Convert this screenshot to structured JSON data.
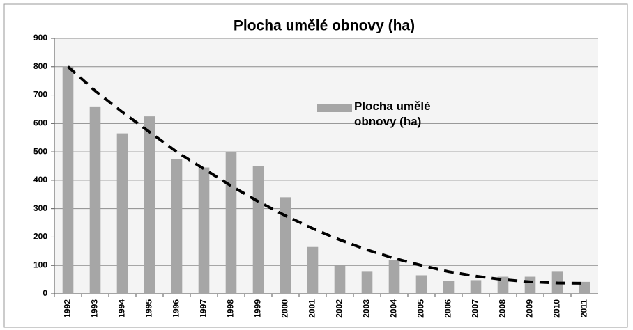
{
  "chart_data": {
    "type": "bar",
    "title": "Plocha umělé obnovy (ha)",
    "categories": [
      "1992",
      "1993",
      "1994",
      "1995",
      "1996",
      "1997",
      "1998",
      "1999",
      "2000",
      "2001",
      "2002",
      "2003",
      "2004",
      "2005",
      "2006",
      "2007",
      "2008",
      "2009",
      "2010",
      "2011"
    ],
    "series": [
      {
        "name": "Plocha umělé obnovy (ha)",
        "color": "#a6a6a6",
        "values": [
          800,
          660,
          565,
          625,
          475,
          445,
          500,
          450,
          340,
          165,
          100,
          80,
          120,
          65,
          45,
          48,
          60,
          60,
          80,
          42
        ]
      }
    ],
    "trendline": {
      "color": "#000000",
      "values": [
        800,
        715,
        640,
        570,
        500,
        440,
        380,
        325,
        275,
        230,
        190,
        155,
        125,
        100,
        78,
        62,
        50,
        42,
        38,
        37
      ]
    },
    "ylim": [
      0,
      900
    ],
    "yticks": [
      0,
      100,
      200,
      300,
      400,
      500,
      600,
      700,
      800,
      900
    ],
    "grid": true
  }
}
